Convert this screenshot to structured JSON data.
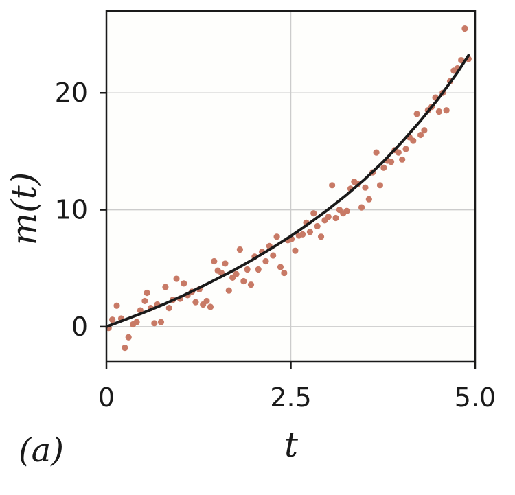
{
  "panel_label": "(a)",
  "chart_data": {
    "type": "scatter",
    "xlabel": "t",
    "ylabel": "m(t)",
    "xlim": [
      0,
      5
    ],
    "ylim": [
      -3,
      27
    ],
    "xticks": [
      0,
      2.5,
      5
    ],
    "xtick_labels": [
      "0",
      "2.5",
      "5.0"
    ],
    "yticks": [
      0,
      10,
      20
    ],
    "ytick_labels": [
      "0",
      "10",
      "20"
    ],
    "grid": true,
    "colors": {
      "points": "#c87a66",
      "fit": "#1a1a1a",
      "grid": "#cccccc",
      "background": "#fefefc"
    },
    "points": [
      [
        0.03,
        -0.1
      ],
      [
        0.08,
        0.6
      ],
      [
        0.14,
        1.8
      ],
      [
        0.2,
        0.7
      ],
      [
        0.25,
        -1.8
      ],
      [
        0.3,
        -0.9
      ],
      [
        0.36,
        0.2
      ],
      [
        0.41,
        0.4
      ],
      [
        0.46,
        1.4
      ],
      [
        0.52,
        2.2
      ],
      [
        0.55,
        2.9
      ],
      [
        0.6,
        1.6
      ],
      [
        0.65,
        0.3
      ],
      [
        0.69,
        1.9
      ],
      [
        0.74,
        0.4
      ],
      [
        0.8,
        3.4
      ],
      [
        0.85,
        1.6
      ],
      [
        0.9,
        2.3
      ],
      [
        0.95,
        4.1
      ],
      [
        1.0,
        2.4
      ],
      [
        1.05,
        3.7
      ],
      [
        1.1,
        2.7
      ],
      [
        1.16,
        3.0
      ],
      [
        1.21,
        2.1
      ],
      [
        1.26,
        3.2
      ],
      [
        1.31,
        1.9
      ],
      [
        1.36,
        2.2
      ],
      [
        1.41,
        1.7
      ],
      [
        1.46,
        5.6
      ],
      [
        1.51,
        4.8
      ],
      [
        1.56,
        4.6
      ],
      [
        1.61,
        5.4
      ],
      [
        1.66,
        3.1
      ],
      [
        1.71,
        4.2
      ],
      [
        1.76,
        4.5
      ],
      [
        1.81,
        6.6
      ],
      [
        1.86,
        3.9
      ],
      [
        1.91,
        4.9
      ],
      [
        1.96,
        3.6
      ],
      [
        2.01,
        6.0
      ],
      [
        2.06,
        4.9
      ],
      [
        2.11,
        6.4
      ],
      [
        2.16,
        5.6
      ],
      [
        2.21,
        6.9
      ],
      [
        2.26,
        6.1
      ],
      [
        2.31,
        7.7
      ],
      [
        2.36,
        5.1
      ],
      [
        2.41,
        4.6
      ],
      [
        2.46,
        7.4
      ],
      [
        2.51,
        7.5
      ],
      [
        2.56,
        6.5
      ],
      [
        2.61,
        7.8
      ],
      [
        2.66,
        7.9
      ],
      [
        2.71,
        8.9
      ],
      [
        2.76,
        8.1
      ],
      [
        2.81,
        9.7
      ],
      [
        2.86,
        8.6
      ],
      [
        2.91,
        7.7
      ],
      [
        2.96,
        9.1
      ],
      [
        3.01,
        9.4
      ],
      [
        3.06,
        12.1
      ],
      [
        3.11,
        9.3
      ],
      [
        3.16,
        10.0
      ],
      [
        3.21,
        9.7
      ],
      [
        3.26,
        9.9
      ],
      [
        3.31,
        11.8
      ],
      [
        3.36,
        12.4
      ],
      [
        3.41,
        12.2
      ],
      [
        3.46,
        10.2
      ],
      [
        3.51,
        11.9
      ],
      [
        3.56,
        10.9
      ],
      [
        3.61,
        13.2
      ],
      [
        3.66,
        14.9
      ],
      [
        3.71,
        12.1
      ],
      [
        3.76,
        13.6
      ],
      [
        3.81,
        14.2
      ],
      [
        3.86,
        14.1
      ],
      [
        3.91,
        15.1
      ],
      [
        3.96,
        14.9
      ],
      [
        4.01,
        14.3
      ],
      [
        4.06,
        15.2
      ],
      [
        4.11,
        16.2
      ],
      [
        4.16,
        15.9
      ],
      [
        4.21,
        18.2
      ],
      [
        4.26,
        16.4
      ],
      [
        4.31,
        16.8
      ],
      [
        4.36,
        18.5
      ],
      [
        4.41,
        18.8
      ],
      [
        4.46,
        19.6
      ],
      [
        4.51,
        18.4
      ],
      [
        4.56,
        20.0
      ],
      [
        4.61,
        18.5
      ],
      [
        4.66,
        21.0
      ],
      [
        4.71,
        21.9
      ],
      [
        4.76,
        22.1
      ],
      [
        4.81,
        22.8
      ],
      [
        4.86,
        25.5
      ],
      [
        4.91,
        22.9
      ]
    ],
    "fit_curve": {
      "label": "",
      "x": [
        0,
        0.25,
        0.5,
        0.75,
        1.0,
        1.25,
        1.5,
        1.75,
        2.0,
        2.25,
        2.5,
        2.75,
        3.0,
        3.25,
        3.5,
        3.75,
        4.0,
        4.25,
        4.5,
        4.75,
        4.92
      ],
      "y": [
        0.0,
        0.6,
        1.2,
        1.85,
        2.55,
        3.3,
        4.1,
        4.9,
        5.8,
        6.75,
        7.75,
        8.85,
        10.0,
        11.25,
        12.6,
        14.1,
        15.75,
        17.55,
        19.5,
        21.65,
        23.3
      ]
    }
  }
}
